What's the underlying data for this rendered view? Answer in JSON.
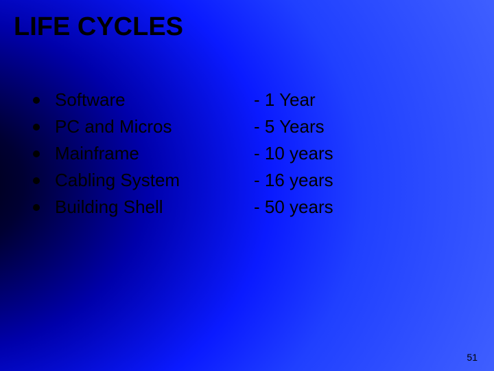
{
  "slide": {
    "title": "LIFE CYCLES",
    "title_fontsize": 38,
    "title_color": "#000000",
    "body_fontsize": 26,
    "body_color": "#000000",
    "bullet_color": "#000000",
    "background": {
      "type": "radial-gradient",
      "center": "left-center",
      "stops": [
        "#000000",
        "#000033",
        "#0000aa",
        "#0a1aff",
        "#2040ff",
        "#4060ff"
      ]
    },
    "items": [
      {
        "label": "Software",
        "value": "- 1 Year"
      },
      {
        "label": "PC and Micros",
        "value": "- 5 Years"
      },
      {
        "label": "Mainframe",
        "value": "- 10 years"
      },
      {
        "label": "Cabling System",
        "value": "- 16 years"
      },
      {
        "label": "Building Shell",
        "value": "- 50 years"
      }
    ],
    "page_number": "51",
    "page_number_fontsize": 14,
    "page_number_color": "#000000"
  }
}
